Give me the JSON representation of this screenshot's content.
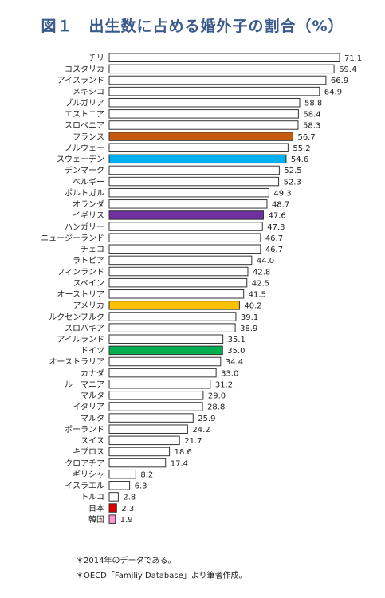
{
  "title": "図１　出生数に占める婚外子の割合（%）",
  "chart_data": {
    "type": "bar",
    "orientation": "horizontal",
    "categories": [
      "チリ",
      "コスタリカ",
      "アイスランド",
      "メキシコ",
      "ブルガリア",
      "エストニア",
      "スロベニア",
      "フランス",
      "ノルウェー",
      "スウェーデン",
      "デンマーク",
      "ベルギー",
      "ポルトガル",
      "オランダ",
      "イギリス",
      "ハンガリー",
      "ニュージーランド",
      "チェコ",
      "ラトビア",
      "フィンランド",
      "スペイン",
      "オーストリア",
      "アメリカ",
      "ルクセンブルク",
      "スロバキア",
      "アイルランド",
      "ドイツ",
      "オーストラリア",
      "カナダ",
      "ルーマニア",
      "マルタ",
      "イタリア",
      "マルタ",
      "ポーランド",
      "スイス",
      "キプロス",
      "クロアチア",
      "ギリシャ",
      "イスラエル",
      "トルコ",
      "日本",
      "韓国"
    ],
    "values": [
      71.1,
      69.4,
      66.9,
      64.9,
      58.8,
      58.4,
      58.3,
      56.7,
      55.2,
      54.6,
      52.5,
      52.3,
      49.3,
      48.7,
      47.6,
      47.3,
      46.7,
      46.7,
      44.0,
      42.8,
      42.5,
      41.5,
      40.2,
      39.1,
      38.9,
      35.1,
      35.0,
      34.4,
      33.0,
      31.2,
      29.0,
      28.8,
      25.9,
      24.2,
      21.7,
      18.6,
      17.4,
      8.2,
      6.3,
      2.8,
      2.3,
      1.9
    ],
    "value_labels": [
      "71.1",
      "69.4",
      "66.9",
      "64.9",
      "58.8",
      "58.4",
      "58.3",
      "56.7",
      "55.2",
      "54.6",
      "52.5",
      "52.3",
      "49.3",
      "48.7",
      "47.6",
      "47.3",
      "46.7",
      "46.7",
      "44.0",
      "42.8",
      "42.5",
      "41.5",
      "40.2",
      "39.1",
      "38.9",
      "35.1",
      "35.0",
      "34.4",
      "33.0",
      "31.2",
      "29.0",
      "28.8",
      "25.9",
      "24.2",
      "21.7",
      "18.6",
      "17.4",
      "8.2",
      "6.3",
      "2.8",
      "2.3",
      "1.9"
    ],
    "highlight_colors": {
      "フランス": "#c55a11",
      "スウェーデン": "#00b0f0",
      "イギリス": "#7030a0",
      "アメリカ": "#ffc000",
      "ドイツ": "#00b050",
      "日本": "#e00000",
      "韓国": "#ff99cc"
    },
    "default_fill": "#ffffff",
    "bar_stroke": "#333333",
    "xlim": [
      0,
      71.1
    ],
    "grid": false,
    "legend": "none"
  },
  "notes": [
    "＊2014年のデータである。",
    "＊OECD「Familiy Database」より筆者作成。"
  ]
}
